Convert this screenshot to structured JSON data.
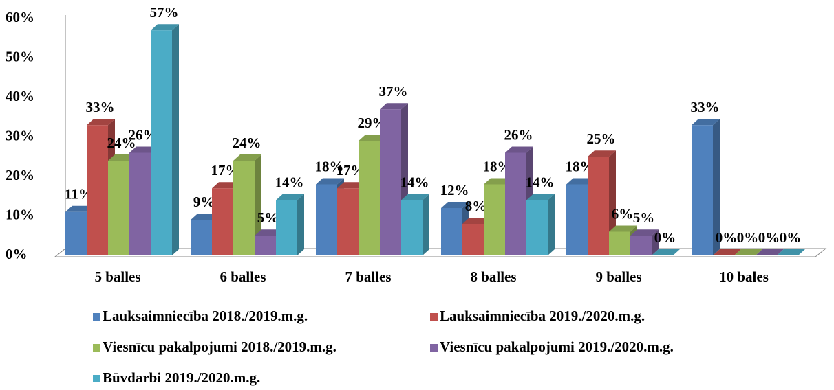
{
  "chart_data": {
    "type": "bar3d",
    "categories": [
      "5 balles",
      "6 balles",
      "7 balles",
      "8 balles",
      "9 balles",
      "10 bales"
    ],
    "series": [
      {
        "name": "Lauksaimniecība 2018./2019.m.g.",
        "color": "#4f81bd",
        "values": [
          11,
          9,
          18,
          12,
          18,
          33
        ],
        "value_labels": [
          "11%",
          "9%",
          "18%",
          "12%",
          "18%",
          "33%"
        ]
      },
      {
        "name": "Lauksaimniecība 2019./2020.m.g.",
        "color": "#c0504d",
        "values": [
          33,
          17,
          17,
          8,
          25,
          0
        ],
        "value_labels": [
          "33%",
          "17%",
          "17%",
          "8%",
          "25%",
          "0%"
        ]
      },
      {
        "name": "Viesnīcu pakalpojumi 2018./2019.m.g.",
        "color": "#9bbb59",
        "values": [
          24,
          24,
          29,
          18,
          6,
          0
        ],
        "value_labels": [
          "24%",
          "24%",
          "29%",
          "18%",
          "6%",
          "0%"
        ]
      },
      {
        "name": "Viesnīcu pakalpojumi 2019./2020.m.g.",
        "color": "#8064a2",
        "values": [
          26,
          5,
          37,
          26,
          5,
          0
        ],
        "value_labels": [
          "26%",
          "5%",
          "37%",
          "26%",
          "5%",
          "0%"
        ]
      },
      {
        "name": "Būvdarbi 2019./2020.m.g.",
        "color": "#4bacc6",
        "values": [
          57,
          14,
          14,
          14,
          0,
          0
        ],
        "value_labels": [
          "57%",
          "14%",
          "14%",
          "14%",
          "0%",
          "0%"
        ]
      }
    ],
    "ylim": [
      0,
      60
    ],
    "yticks": [
      {
        "value": 0,
        "label": "0%"
      },
      {
        "value": 10,
        "label": "10%"
      },
      {
        "value": 20,
        "label": "20%"
      },
      {
        "value": 30,
        "label": "30%"
      },
      {
        "value": 40,
        "label": "40%"
      },
      {
        "value": 50,
        "label": "50%"
      },
      {
        "value": 60,
        "label": "60%"
      }
    ],
    "grid": false
  }
}
